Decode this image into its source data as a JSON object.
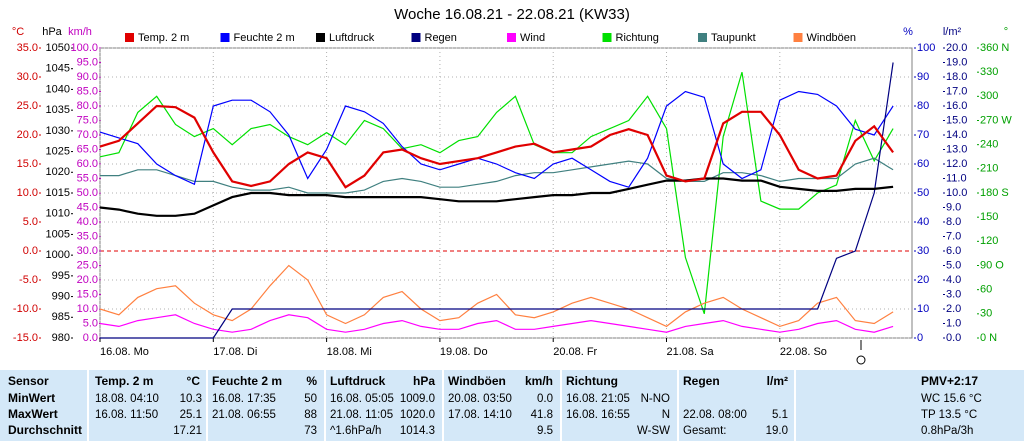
{
  "chart_data": {
    "type": "line",
    "title": "Woche 16.08.21 - 22.08.21 (KW33)",
    "x": [
      0,
      4,
      8,
      12,
      16,
      20,
      24,
      28,
      32,
      36,
      40,
      44,
      48,
      52,
      56,
      60,
      64,
      68,
      72,
      76,
      80,
      84,
      88,
      92,
      96,
      100,
      104,
      108,
      112,
      116,
      120,
      124,
      128,
      132,
      136,
      140,
      144,
      148,
      152,
      156,
      160,
      164,
      168
    ],
    "xlim": [
      0,
      172
    ],
    "xticks": [
      {
        "value": 0,
        "label": "16.08. Mo"
      },
      {
        "value": 24,
        "label": "17.08. Di"
      },
      {
        "value": 48,
        "label": "18.08. Mi"
      },
      {
        "value": 72,
        "label": "19.08. Do"
      },
      {
        "value": 96,
        "label": "20.08. Fr"
      },
      {
        "value": 120,
        "label": "21.08. Sa"
      },
      {
        "value": 144,
        "label": "22.08. So"
      }
    ],
    "grid": true,
    "axes": [
      {
        "unit": "°C",
        "color": "#d00000",
        "lim": [
          -15,
          35
        ],
        "ticks": [
          {
            "value": -15,
            "label": "-15.0"
          },
          {
            "value": -10,
            "label": "-10.0"
          },
          {
            "value": -5,
            "label": "-5.0"
          },
          {
            "value": 0,
            "label": "0.0"
          },
          {
            "value": 5,
            "label": "5.0"
          },
          {
            "value": 10,
            "label": "10.0"
          },
          {
            "value": 15,
            "label": "15.0"
          },
          {
            "value": 20,
            "label": "20.0"
          },
          {
            "value": 25,
            "label": "25.0"
          },
          {
            "value": 30,
            "label": "30.0"
          },
          {
            "value": 35,
            "label": "35.0"
          }
        ]
      },
      {
        "unit": "hPa",
        "color": "#000000",
        "lim": [
          980,
          1050
        ],
        "ticks": [
          980,
          985,
          990,
          995,
          1000,
          1005,
          1010,
          1015,
          1020,
          1025,
          1030,
          1035,
          1040,
          1045,
          1050
        ]
      },
      {
        "unit": "km/h",
        "color": "#c000c0",
        "lim": [
          0,
          100
        ],
        "ticks": [
          {
            "value": 0,
            "label": "0.0"
          },
          {
            "value": 5,
            "label": "5.0"
          },
          {
            "value": 10,
            "label": "10.0"
          },
          {
            "value": 15,
            "label": "15.0"
          },
          {
            "value": 20,
            "label": "20.0"
          },
          {
            "value": 25,
            "label": "25.0"
          },
          {
            "value": 30,
            "label": "30.0"
          },
          {
            "value": 35,
            "label": "35.0"
          },
          {
            "value": 40,
            "label": "40.0"
          },
          {
            "value": 45,
            "label": "45.0"
          },
          {
            "value": 50,
            "label": "50.0"
          },
          {
            "value": 55,
            "label": "55.0"
          },
          {
            "value": 60,
            "label": "60.0"
          },
          {
            "value": 65,
            "label": "65.0"
          },
          {
            "value": 70,
            "label": "70.0"
          },
          {
            "value": 75,
            "label": "75.0"
          },
          {
            "value": 80,
            "label": "80.0"
          },
          {
            "value": 85,
            "label": "85.0"
          },
          {
            "value": 90,
            "label": "90.0"
          },
          {
            "value": 95,
            "label": "95.0"
          },
          {
            "value": 100,
            "label": "100.0"
          }
        ]
      },
      {
        "unit": "%",
        "color": "#0000c0",
        "lim": [
          0,
          100
        ],
        "ticks": [
          0,
          10,
          20,
          30,
          40,
          50,
          60,
          70,
          80,
          90,
          100
        ]
      },
      {
        "unit": "l/m²",
        "color": "#000080",
        "lim": [
          0,
          20
        ],
        "ticks": [
          {
            "value": 0,
            "label": "0.0"
          },
          {
            "value": 1,
            "label": "1.0"
          },
          {
            "value": 2,
            "label": "2.0"
          },
          {
            "value": 3,
            "label": "3.0"
          },
          {
            "value": 4,
            "label": "4.0"
          },
          {
            "value": 5,
            "label": "5.0"
          },
          {
            "value": 6,
            "label": "6.0"
          },
          {
            "value": 7,
            "label": "7.0"
          },
          {
            "value": 8,
            "label": "8.0"
          },
          {
            "value": 9,
            "label": "9.0"
          },
          {
            "value": 10,
            "label": "10.0"
          },
          {
            "value": 11,
            "label": "11.0"
          },
          {
            "value": 12,
            "label": "12.0"
          },
          {
            "value": 13,
            "label": "13.0"
          },
          {
            "value": 14,
            "label": "14.0"
          },
          {
            "value": 15,
            "label": "15.0"
          },
          {
            "value": 16,
            "label": "16.0"
          },
          {
            "value": 17,
            "label": "17.0"
          },
          {
            "value": 18,
            "label": "18.0"
          },
          {
            "value": 19,
            "label": "19.0"
          },
          {
            "value": 20,
            "label": "20.0"
          }
        ]
      },
      {
        "unit": "°",
        "color": "#00a000",
        "lim": [
          0,
          360
        ],
        "ticks": [
          {
            "value": 0,
            "label": "0 N"
          },
          30,
          60,
          {
            "value": 90,
            "label": "90 O"
          },
          120,
          150,
          {
            "value": 180,
            "label": "180 S"
          },
          210,
          240,
          {
            "value": 270,
            "label": "270 W"
          },
          300,
          330,
          {
            "value": 360,
            "label": "360 N"
          }
        ]
      }
    ],
    "series": [
      {
        "name": "Temp. 2 m",
        "color": "#e00000",
        "axis": 0,
        "values": [
          18,
          19,
          22,
          25,
          24.8,
          23,
          17,
          12,
          11.2,
          12,
          15,
          17,
          16,
          11,
          13,
          17,
          17.5,
          16,
          15,
          15.5,
          16,
          17,
          18,
          18.5,
          17,
          17.5,
          18,
          20,
          21,
          20,
          13,
          12,
          12.5,
          22,
          24,
          24,
          20,
          14,
          12.5,
          13,
          19,
          21.5,
          17
        ]
      },
      {
        "name": "Feuchte 2 m",
        "color": "#0000ff",
        "axis": 3,
        "values": [
          71,
          69,
          67,
          60,
          56,
          53,
          80,
          82,
          82,
          78,
          70,
          55,
          65,
          80,
          78,
          74,
          66,
          60,
          58,
          60,
          62,
          60,
          57,
          55,
          60,
          62,
          58,
          54,
          52,
          62,
          80,
          85,
          83,
          60,
          55,
          58,
          82,
          85,
          84,
          80,
          72,
          70,
          80
        ]
      },
      {
        "name": "Luftdruck",
        "color": "#000000",
        "axis": 1,
        "values": [
          1011.5,
          1011,
          1010,
          1009.5,
          1009.5,
          1010,
          1012,
          1014,
          1015,
          1015,
          1014.5,
          1014.5,
          1014.5,
          1014,
          1014,
          1014,
          1014,
          1014,
          1013.5,
          1013,
          1013,
          1013,
          1013.5,
          1014,
          1014.5,
          1014.5,
          1015,
          1015,
          1016,
          1017,
          1018,
          1018,
          1018.5,
          1018.5,
          1018,
          1018,
          1016.5,
          1016,
          1015.5,
          1015.5,
          1016,
          1016,
          1016.5
        ]
      },
      {
        "name": "Regen",
        "color": "#000080",
        "axis": 4,
        "values": [
          0,
          0,
          0,
          0,
          0,
          0,
          0,
          2,
          2,
          2,
          2,
          2,
          2,
          2,
          2,
          2,
          2,
          2,
          2,
          2,
          2,
          2,
          2,
          2,
          2,
          2,
          2,
          2,
          2,
          2,
          2,
          2,
          2,
          2,
          2,
          2,
          2,
          2,
          2,
          5.5,
          6,
          10,
          19
        ]
      },
      {
        "name": "Wind",
        "color": "#ff00ff",
        "axis": 2,
        "values": [
          5,
          4,
          6,
          7,
          8,
          5,
          3,
          2,
          3,
          6,
          8,
          7,
          3,
          2,
          3,
          5,
          6,
          4,
          3,
          3,
          5,
          6,
          3,
          3,
          4,
          5,
          6,
          5,
          4,
          3,
          2,
          4,
          5,
          6,
          4,
          3,
          2,
          3,
          5,
          6,
          3,
          2,
          4
        ]
      },
      {
        "name": "Richtung",
        "color": "#00e000",
        "axis": 5,
        "values": [
          225,
          230,
          280,
          300,
          265,
          250,
          260,
          240,
          260,
          265,
          250,
          240,
          255,
          240,
          270,
          260,
          235,
          240,
          230,
          245,
          250,
          280,
          300,
          240,
          230,
          230,
          250,
          260,
          270,
          300,
          260,
          100,
          30,
          250,
          330,
          170,
          160,
          160,
          180,
          190,
          270,
          220,
          260
        ]
      },
      {
        "name": "Taupunkt",
        "color": "#408080",
        "axis": 0,
        "values": [
          13,
          13,
          14,
          14,
          13,
          12,
          12,
          11,
          10.5,
          10.5,
          11,
          10,
          10,
          10,
          10.5,
          12,
          12.5,
          12,
          11,
          11,
          11.5,
          12,
          13,
          13.5,
          13.5,
          14,
          14.5,
          15,
          15.5,
          15,
          12.5,
          12,
          12,
          13.5,
          13.5,
          13,
          12,
          12.5,
          12.5,
          12.5,
          15,
          16,
          14
        ]
      },
      {
        "name": "Windböen",
        "color": "#ff8040",
        "axis": 2,
        "values": [
          10,
          8,
          14,
          17,
          18,
          12,
          8,
          6,
          10,
          18,
          25,
          20,
          8,
          5,
          8,
          14,
          16,
          10,
          6,
          7,
          12,
          15,
          8,
          7,
          9,
          12,
          14,
          12,
          10,
          7,
          4,
          9,
          12,
          14,
          10,
          7,
          4,
          6,
          12,
          14,
          6,
          5,
          9
        ]
      }
    ]
  },
  "table": {
    "header": [
      "Sensor",
      "Temp. 2 m",
      "°C",
      "Feuchte 2 m",
      "%",
      "Luftdruck",
      "hPa",
      "Windböen",
      "km/h",
      "Richtung",
      "Regen",
      "l/m²",
      "PMV+2:17"
    ],
    "rows": [
      [
        "MinWert",
        "18.08. 04:10",
        "10.3",
        "16.08. 17:35",
        "50",
        "16.08. 05:05",
        "1009.0",
        "20.08. 03:50",
        "0.0",
        "16.08. 21:05",
        "N-NO",
        null,
        null,
        "WC 15.6 °C"
      ],
      [
        "MaxWert",
        "16.08. 11:50",
        "25.1",
        "21.08. 06:55",
        "88",
        "21.08. 11:05",
        "1020.0",
        "17.08. 14:10",
        "41.8",
        "16.08. 16:55",
        "N",
        "22.08. 08:00",
        "5.1",
        "TP 13.5 °C"
      ],
      [
        "Durchschnitt",
        null,
        "17.21",
        null,
        "73",
        "^1.6hPa/h",
        "1014.3",
        null,
        "9.5",
        null,
        "W-SW",
        "Gesamt:",
        "19.0",
        "0.8hPa/3h"
      ]
    ]
  }
}
